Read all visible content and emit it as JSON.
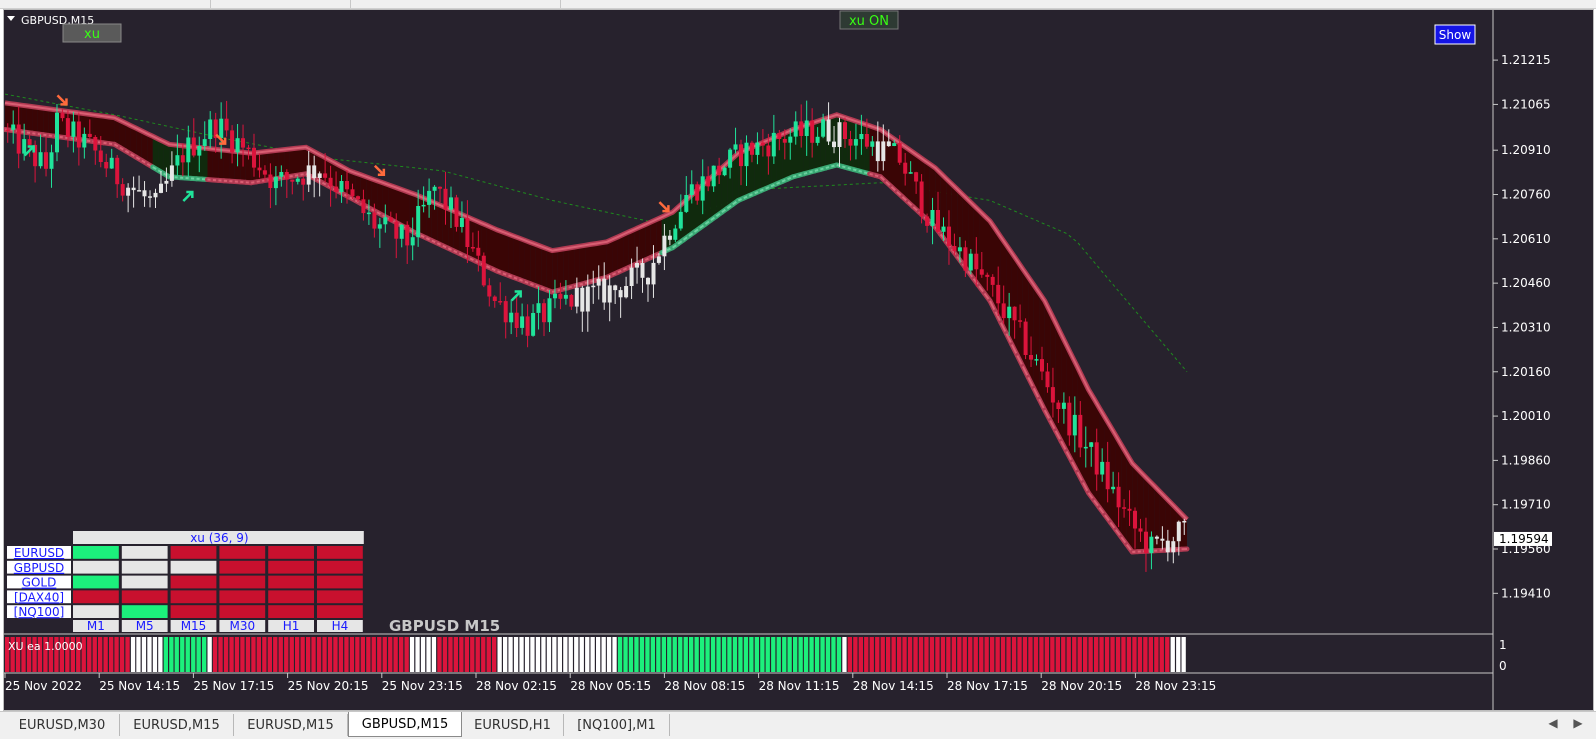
{
  "window": {
    "symbol_title": "GBPUSD,M15",
    "watermark": "GBPUSD M15",
    "xu_button": "xu",
    "xu_on_label": "xu ON",
    "show_button": "Show"
  },
  "colors": {
    "background": "#27222d",
    "bull_candle": "#20e39a",
    "bear_candle": "#dc143c",
    "neutral_candle": "#e6e6e6",
    "band_upper": "#d95f73",
    "band_lower_green": "#6ad19f",
    "band_fill_bear": "#3a0505",
    "band_fill_bull": "#102a0d",
    "ma_dotted": "#1e8a1e",
    "signal_arrow": "#ff6a3c",
    "up_arrow": "#20e39a",
    "panel_blue_text": "#1a1aff"
  },
  "price_axis": {
    "labels": [
      "1.21215",
      "1.21065",
      "1.20910",
      "1.20760",
      "1.20610",
      "1.20460",
      "1.20310",
      "1.20160",
      "1.20010",
      "1.19860",
      "1.19710",
      "1.19560",
      "1.19410"
    ],
    "current_price": "1.19594"
  },
  "time_axis": {
    "labels": [
      "25 Nov 2022",
      "25 Nov 14:15",
      "25 Nov 17:15",
      "25 Nov 20:15",
      "25 Nov 23:15",
      "28 Nov 02:15",
      "28 Nov 05:15",
      "28 Nov 08:15",
      "28 Nov 11:15",
      "28 Nov 14:15",
      "28 Nov 17:15",
      "28 Nov 20:15",
      "28 Nov 23:15"
    ]
  },
  "dashboard": {
    "title": "xu (36, 9)",
    "symbols": [
      "EURUSD",
      "GBPUSD",
      "GOLD",
      "[DAX40]",
      "[NQ100]"
    ],
    "timeframes": [
      "M1",
      "M5",
      "M15",
      "M30",
      "H1",
      "H4"
    ],
    "grid": [
      [
        "green",
        "white",
        "red",
        "red",
        "red",
        "red"
      ],
      [
        "white",
        "white",
        "white",
        "red",
        "red",
        "red"
      ],
      [
        "green",
        "white",
        "red",
        "red",
        "red",
        "red"
      ],
      [
        "red",
        "red",
        "red",
        "red",
        "red",
        "red"
      ],
      [
        "white",
        "green",
        "red",
        "red",
        "red",
        "red"
      ]
    ]
  },
  "subwindow": {
    "label": "XU ea 1.0000",
    "scale_top": "1",
    "scale_bottom": "0",
    "segments": [
      {
        "state": "red",
        "bars": 23
      },
      {
        "state": "white",
        "bars": 6
      },
      {
        "state": "green",
        "bars": 8
      },
      {
        "state": "white",
        "bars": 1
      },
      {
        "state": "red",
        "bars": 36
      },
      {
        "state": "white",
        "bars": 5
      },
      {
        "state": "red",
        "bars": 11
      },
      {
        "state": "white",
        "bars": 22
      },
      {
        "state": "green",
        "bars": 41
      },
      {
        "state": "white",
        "bars": 1
      },
      {
        "state": "red",
        "bars": 59
      },
      {
        "state": "white",
        "bars": 3
      }
    ]
  },
  "chart_data": {
    "type": "candlestick",
    "y_range": [
      1.1934,
      1.213
    ],
    "bars": 216,
    "price_path": [
      [
        0,
        1.2098
      ],
      [
        8,
        1.2085
      ],
      [
        10,
        1.21
      ],
      [
        16,
        1.2092
      ],
      [
        21,
        1.2082
      ],
      [
        28,
        1.2072
      ],
      [
        33,
        1.209
      ],
      [
        39,
        1.21
      ],
      [
        44,
        1.2092
      ],
      [
        50,
        1.208
      ],
      [
        58,
        1.2085
      ],
      [
        68,
        1.2066
      ],
      [
        74,
        1.206
      ],
      [
        79,
        1.2078
      ],
      [
        83,
        1.2068
      ],
      [
        90,
        1.204
      ],
      [
        96,
        1.2032
      ],
      [
        103,
        1.204
      ],
      [
        112,
        1.2044
      ],
      [
        118,
        1.205
      ],
      [
        125,
        1.2076
      ],
      [
        135,
        1.209
      ],
      [
        142,
        1.2095
      ],
      [
        150,
        1.2098
      ],
      [
        158,
        1.2094
      ],
      [
        164,
        1.2088
      ],
      [
        170,
        1.2066
      ],
      [
        176,
        1.2055
      ],
      [
        182,
        1.204
      ],
      [
        187,
        1.2025
      ],
      [
        192,
        1.2008
      ],
      [
        200,
        1.1985
      ],
      [
        206,
        1.1965
      ],
      [
        210,
        1.1956
      ],
      [
        216,
        1.1962
      ]
    ],
    "upper_band": [
      [
        0,
        1.2107
      ],
      [
        20,
        1.2102
      ],
      [
        30,
        1.2093
      ],
      [
        45,
        1.209
      ],
      [
        55,
        1.2092
      ],
      [
        63,
        1.2084
      ],
      [
        75,
        1.2076
      ],
      [
        90,
        1.2064
      ],
      [
        100,
        1.2057
      ],
      [
        110,
        1.206
      ],
      [
        122,
        1.207
      ],
      [
        134,
        1.209
      ],
      [
        144,
        1.2098
      ],
      [
        152,
        1.2103
      ],
      [
        160,
        1.2098
      ],
      [
        170,
        1.2085
      ],
      [
        180,
        1.2067
      ],
      [
        190,
        1.204
      ],
      [
        198,
        1.201
      ],
      [
        206,
        1.1985
      ],
      [
        216,
        1.1966
      ]
    ],
    "lower_band": [
      [
        0,
        1.2098
      ],
      [
        20,
        1.2093
      ],
      [
        30,
        1.2082
      ],
      [
        45,
        1.208
      ],
      [
        55,
        1.2083
      ],
      [
        63,
        1.2075
      ],
      [
        75,
        1.2063
      ],
      [
        90,
        1.205
      ],
      [
        100,
        1.2043
      ],
      [
        110,
        1.2048
      ],
      [
        122,
        1.2058
      ],
      [
        134,
        1.2074
      ],
      [
        144,
        1.2082
      ],
      [
        152,
        1.2086
      ],
      [
        160,
        1.2082
      ],
      [
        170,
        1.2065
      ],
      [
        180,
        1.204
      ],
      [
        190,
        1.2003
      ],
      [
        198,
        1.1975
      ],
      [
        206,
        1.1955
      ],
      [
        216,
        1.1956
      ]
    ],
    "ma_dotted": [
      [
        0,
        1.211
      ],
      [
        20,
        1.2103
      ],
      [
        40,
        1.2095
      ],
      [
        60,
        1.2088
      ],
      [
        80,
        1.2084
      ],
      [
        100,
        1.2074
      ],
      [
        120,
        1.2066
      ],
      [
        140,
        1.2078
      ],
      [
        160,
        1.208
      ],
      [
        180,
        1.2074
      ],
      [
        195,
        1.2062
      ],
      [
        205,
        1.204
      ],
      [
        216,
        1.2016
      ]
    ],
    "signals_down": [
      10,
      39,
      68,
      120
    ],
    "signals_up": [
      4,
      33,
      93
    ]
  }
}
